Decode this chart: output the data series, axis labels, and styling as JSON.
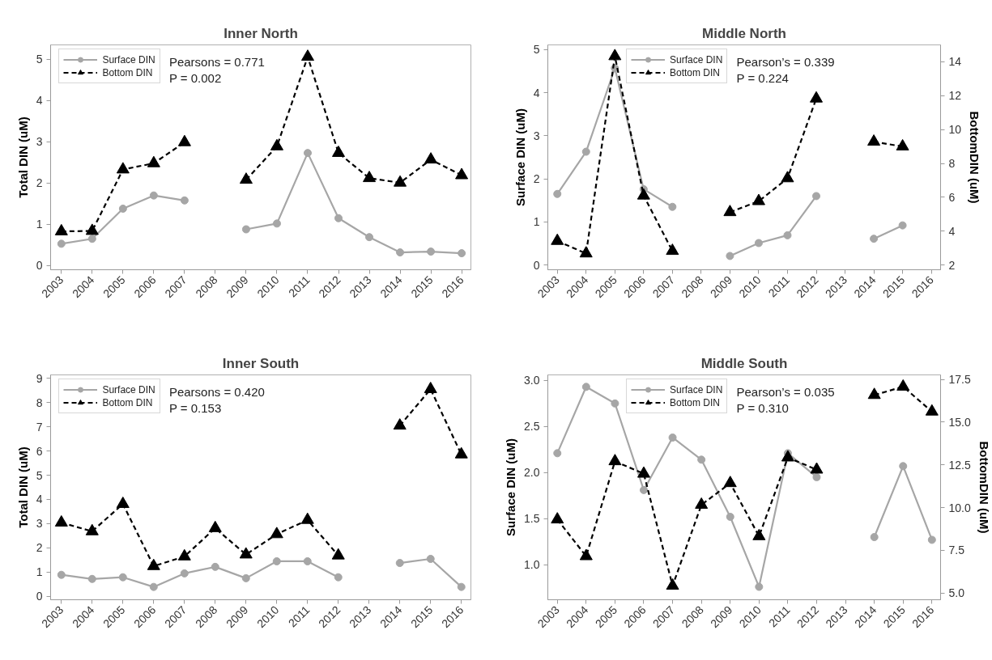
{
  "chart_data": [
    {
      "type": "line",
      "title": "Inner North",
      "ylabel": "Total DIN (uM)",
      "x": [
        2003,
        2004,
        2005,
        2006,
        2007,
        2008,
        2009,
        2010,
        2011,
        2012,
        2013,
        2014,
        2015,
        2016
      ],
      "xlim": [
        2002.65,
        2016.3
      ],
      "xticks": [
        2003,
        2004,
        2005,
        2006,
        2007,
        2008,
        2009,
        2010,
        2011,
        2012,
        2013,
        2014,
        2015,
        2016
      ],
      "ylim": [
        -0.1,
        5.35
      ],
      "yticks": [
        0,
        1,
        2,
        3,
        4,
        5
      ],
      "legend": "top left",
      "annotations": [
        "Pearsons = 0.771",
        "P = 0.002"
      ],
      "series": [
        {
          "name": "Surface DIN",
          "color": "#a6a6a6",
          "marker": "circle",
          "line_style": "solid",
          "values": [
            0.53,
            0.65,
            1.38,
            1.7,
            1.58,
            null,
            0.88,
            1.02,
            2.73,
            1.15,
            0.69,
            0.32,
            0.34,
            0.3
          ]
        },
        {
          "name": "Bottom DIN",
          "color": "#000000",
          "marker": "triangle",
          "line_style": "dashed",
          "values": [
            0.83,
            0.84,
            2.33,
            2.48,
            2.99,
            null,
            2.08,
            2.89,
            5.06,
            2.73,
            2.12,
            2.01,
            2.57,
            2.19
          ]
        }
      ]
    },
    {
      "type": "line",
      "title": "Middle North",
      "ylabel": "Surface DIN (uM)",
      "y2label": "BottomDIN (uM)",
      "x": [
        2003,
        2004,
        2005,
        2006,
        2007,
        2008,
        2009,
        2010,
        2011,
        2012,
        2013,
        2014,
        2015
      ],
      "xlim": [
        2002.67,
        2016.32
      ],
      "xticks": [
        2003,
        2004,
        2005,
        2006,
        2007,
        2008,
        2009,
        2010,
        2011,
        2012,
        2013,
        2014,
        2015,
        2016
      ],
      "ylim": [
        -0.11,
        5.11
      ],
      "yticks": [
        0,
        1,
        2,
        3,
        4,
        5
      ],
      "y2lim": [
        1.72,
        15.0
      ],
      "y2ticks": [
        2,
        4,
        6,
        8,
        10,
        12,
        14
      ],
      "legend": "top",
      "annotations": [
        "Pearson’s = 0.339",
        "P = 0.224"
      ],
      "series": [
        {
          "name": "Surface DIN",
          "color": "#a6a6a6",
          "marker": "circle",
          "line_style": "solid",
          "values": [
            1.65,
            2.63,
            4.57,
            1.76,
            1.35,
            null,
            0.21,
            0.51,
            0.69,
            1.6,
            null,
            0.61,
            0.92
          ]
        },
        {
          "name": "Bottom DIN",
          "color": "#000000",
          "marker": "triangle",
          "line_style": "dashed",
          "axis": "y2",
          "values": [
            3.42,
            2.68,
            14.33,
            6.1,
            2.83,
            null,
            5.12,
            5.77,
            7.12,
            11.83,
            null,
            9.28,
            9.0
          ]
        }
      ]
    },
    {
      "type": "line",
      "title": "Inner South",
      "ylabel": "Total DIN (uM)",
      "x": [
        2003,
        2004,
        2005,
        2006,
        2007,
        2008,
        2009,
        2010,
        2011,
        2012,
        2013,
        2014,
        2015,
        2016
      ],
      "xlim": [
        2002.65,
        2016.31
      ],
      "xticks": [
        2003,
        2004,
        2005,
        2006,
        2007,
        2008,
        2009,
        2010,
        2011,
        2012,
        2013,
        2014,
        2015,
        2016
      ],
      "ylim": [
        -0.15,
        9.15
      ],
      "yticks": [
        0,
        1,
        2,
        3,
        4,
        5,
        6,
        7,
        8,
        9
      ],
      "legend": "top left",
      "annotations": [
        "Pearsons = 0.420",
        "P = 0.153"
      ],
      "series": [
        {
          "name": "Surface DIN",
          "color": "#a6a6a6",
          "marker": "circle",
          "line_style": "solid",
          "values": [
            0.88,
            0.71,
            0.78,
            0.38,
            0.94,
            1.21,
            0.74,
            1.44,
            1.44,
            0.78,
            null,
            1.37,
            1.54,
            0.38
          ]
        },
        {
          "name": "Bottom DIN",
          "color": "#000000",
          "marker": "triangle",
          "line_style": "dashed",
          "values": [
            3.04,
            2.68,
            3.81,
            1.24,
            1.64,
            2.81,
            1.72,
            2.56,
            3.15,
            1.68,
            null,
            7.05,
            8.56,
            5.86
          ]
        }
      ]
    },
    {
      "type": "line",
      "title": "Middle South",
      "ylabel": "Surface DIN (uM)",
      "y2label": "BottomDIN (uM)",
      "x": [
        2003,
        2004,
        2005,
        2006,
        2007,
        2008,
        2009,
        2010,
        2011,
        2012,
        2013,
        2014,
        2015,
        2016
      ],
      "xlim": [
        2002.67,
        2016.3
      ],
      "xticks": [
        2003,
        2004,
        2005,
        2006,
        2007,
        2008,
        2009,
        2010,
        2011,
        2012,
        2013,
        2014,
        2015,
        2016
      ],
      "ylim": [
        0.62,
        3.06
      ],
      "yticks": [
        {
          "value": 1,
          "label": "1.0"
        },
        1.5,
        {
          "value": 2,
          "label": "2.0"
        },
        2.5,
        {
          "value": 3,
          "label": "3.0"
        }
      ],
      "y2lim": [
        4.6,
        17.77
      ],
      "y2ticks": [
        {
          "value": 5,
          "label": "5.0"
        },
        7.5,
        {
          "value": 10,
          "label": "10.0"
        },
        12.5,
        {
          "value": 15,
          "label": "15.0"
        },
        17.5
      ],
      "legend": "top",
      "annotations": [
        "Pearson’s = 0.035",
        "P = 0.310"
      ],
      "series": [
        {
          "name": "Surface DIN",
          "color": "#a6a6a6",
          "marker": "circle",
          "line_style": "solid",
          "values": [
            2.21,
            2.93,
            2.75,
            1.81,
            2.38,
            2.14,
            1.52,
            0.76,
            2.21,
            1.95,
            null,
            1.3,
            2.07,
            1.27
          ]
        },
        {
          "name": "Bottom DIN",
          "color": "#000000",
          "marker": "triangle",
          "line_style": "dashed",
          "axis": "y2",
          "values": [
            9.3,
            7.15,
            12.71,
            11.98,
            5.42,
            10.16,
            11.43,
            8.32,
            12.93,
            12.22,
            null,
            16.59,
            17.08,
            15.62
          ]
        }
      ]
    }
  ]
}
